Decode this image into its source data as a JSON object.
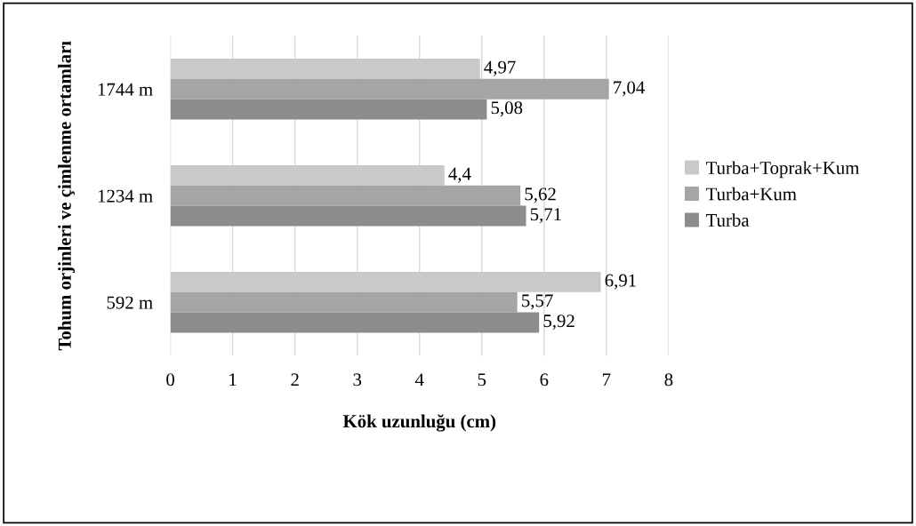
{
  "chart_data": {
    "type": "bar",
    "orientation": "horizontal",
    "xlabel": "Kök uzunluğu (cm)",
    "ylabel": "Tohum orjinleri ve çimlenme ortamları",
    "categories": [
      "1744 m",
      "1234 m",
      "592 m"
    ],
    "series": [
      {
        "name": "Turba+Toprak+Kum",
        "color": "#c9c9c9",
        "values": [
          4.97,
          4.4,
          6.91
        ],
        "value_labels": [
          "4,97",
          "4,4",
          "6,91"
        ]
      },
      {
        "name": "Turba+Kum",
        "color": "#a5a5a5",
        "values": [
          7.04,
          5.62,
          5.57
        ],
        "value_labels": [
          "7,04",
          "5,62",
          "5,57"
        ]
      },
      {
        "name": "Turba",
        "color": "#8c8c8c",
        "values": [
          5.08,
          5.71,
          5.92
        ],
        "value_labels": [
          "5,08",
          "5,71",
          "5,92"
        ]
      }
    ],
    "xlim": [
      0,
      8
    ],
    "xticks": [
      0,
      1,
      2,
      3,
      4,
      5,
      6,
      7,
      8
    ],
    "grid": "x",
    "legend": "right"
  }
}
